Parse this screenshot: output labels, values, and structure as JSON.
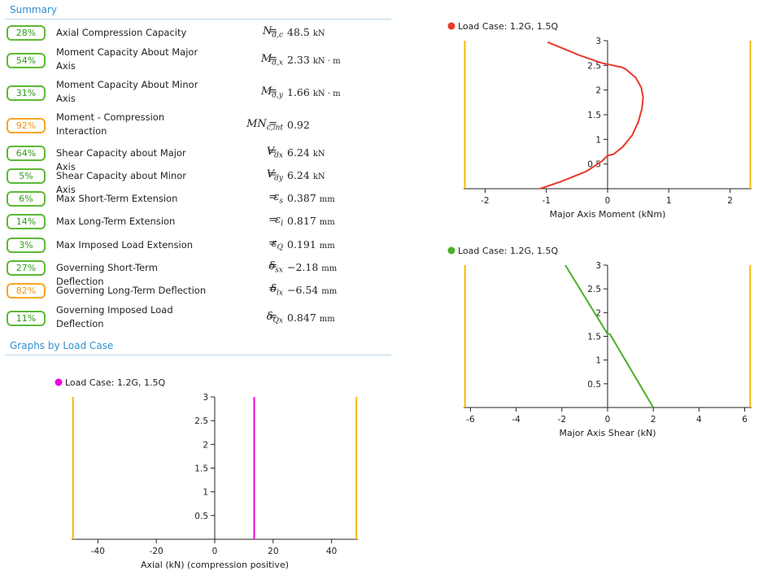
{
  "summary": {
    "title": "Summary",
    "rows": [
      {
        "pct": "28%",
        "label": "Axial Compression Capacity",
        "sym": "N",
        "sub": "d,c",
        "value": "48.5",
        "unit": "kN",
        "warn": false,
        "two": false
      },
      {
        "pct": "54%",
        "label": "Moment Capacity About Major Axis",
        "sym": "M",
        "sub": "d,x",
        "value": "2.33",
        "unit": "kN · m",
        "warn": false,
        "two": true
      },
      {
        "pct": "31%",
        "label": "Moment Capacity About Minor Axis",
        "sym": "M",
        "sub": "d,y",
        "value": "1.66",
        "unit": "kN · m",
        "warn": false,
        "two": true
      },
      {
        "pct": "92%",
        "label": "Moment - Compression Interaction",
        "sym": "MN",
        "sub": "c,int",
        "value": "0.92",
        "unit": "",
        "warn": true,
        "two": true
      },
      {
        "pct": "64%",
        "label": "Shear Capacity about Major Axis",
        "sym": "V",
        "sub": "dx",
        "value": "6.24",
        "unit": "kN",
        "warn": false,
        "two": false
      },
      {
        "pct": "5%",
        "label": "Shear Capacity about Minor Axis",
        "sym": "V",
        "sub": "dy",
        "value": "6.24",
        "unit": "kN",
        "warn": false,
        "two": false
      },
      {
        "pct": "6%",
        "label": "Max Short-Term Extension",
        "sym": "ε",
        "sub": "s",
        "value": "0.387",
        "unit": "mm",
        "warn": false,
        "two": false
      },
      {
        "pct": "14%",
        "label": "Max Long-Term Extension",
        "sym": "ε",
        "sub": "l",
        "value": "0.817",
        "unit": "mm",
        "warn": false,
        "two": false
      },
      {
        "pct": "3%",
        "label": "Max Imposed Load Extension",
        "sym": "ε",
        "sub": "Q",
        "value": "0.191",
        "unit": "mm",
        "warn": false,
        "two": false
      },
      {
        "pct": "27%",
        "label": "Governing Short-Term Deflection",
        "sym": "δ",
        "sub": "sx",
        "value": "−2.18",
        "unit": "mm",
        "warn": false,
        "two": false
      },
      {
        "pct": "82%",
        "label": "Governing Long-Term Deflection",
        "sym": "δ",
        "sub": "lx",
        "value": "−6.54",
        "unit": "mm",
        "warn": true,
        "two": false
      },
      {
        "pct": "11%",
        "label": "Governing Imposed Load Deflection",
        "sym": "δ",
        "sub": "Qx",
        "value": "0.847",
        "unit": "mm",
        "warn": false,
        "two": true
      }
    ]
  },
  "graphs_title": "Graphs by Load Case",
  "chart_data": [
    {
      "type": "line",
      "legend": "Load Case: 1.2G, 1.5Q",
      "xlabel": "Major Axis Moment (kNm)",
      "color": "#e8392b",
      "limit_color": "#f5b800",
      "xlim": [
        -2.35,
        2.35
      ],
      "ylim": [
        0,
        3
      ],
      "xticks": [
        -2,
        -1,
        0,
        1,
        2
      ],
      "yticks": [
        0.5,
        1,
        1.5,
        2,
        2.5,
        3
      ],
      "limits": [
        -2.33,
        2.33
      ],
      "series": [
        {
          "x": [
            -1.1,
            -0.75,
            -0.35,
            -0.1,
            0.0,
            0.1,
            0.25,
            0.4,
            0.5,
            0.56,
            0.58,
            0.55,
            0.46,
            0.3,
            0.22,
            0.2,
            -0.1,
            -0.45,
            -0.8,
            -0.98
          ],
          "y": [
            0.0,
            0.15,
            0.35,
            0.55,
            0.67,
            0.7,
            0.85,
            1.08,
            1.35,
            1.62,
            1.85,
            2.05,
            2.25,
            2.42,
            2.47,
            2.47,
            2.55,
            2.7,
            2.88,
            2.97
          ]
        }
      ]
    },
    {
      "type": "line",
      "legend": "Load Case: 1.2G, 1.5Q",
      "xlabel": "Major Axis Shear (kN)",
      "color": "#4aaf2a",
      "limit_color": "#f5b800",
      "xlim": [
        -6.3,
        6.3
      ],
      "ylim": [
        0,
        3
      ],
      "xticks": [
        -6,
        -4,
        -2,
        0,
        2,
        4,
        6
      ],
      "yticks": [
        0.5,
        1,
        1.5,
        2,
        2.5,
        3
      ],
      "limits": [
        -6.24,
        6.24
      ],
      "series": [
        {
          "x": [
            -1.85,
            0.0,
            0.1,
            2.0
          ],
          "y": [
            3.0,
            1.55,
            1.55,
            0.0
          ]
        }
      ]
    },
    {
      "type": "line",
      "legend": "Load Case: 1.2G, 1.5Q",
      "xlabel": "Axial (kN) (compression positive)",
      "color": "#ee00dd",
      "limit_color": "#f5b800",
      "xlim": [
        -49,
        49
      ],
      "ylim": [
        0,
        3
      ],
      "xticks": [
        -40,
        -20,
        0,
        20,
        40
      ],
      "yticks": [
        0.5,
        1,
        1.5,
        2,
        2.5,
        3
      ],
      "limits": [
        -48.5,
        48.5
      ],
      "series": [
        {
          "x": [
            13.5,
            13.5
          ],
          "y": [
            0.0,
            3.0
          ]
        }
      ]
    }
  ]
}
